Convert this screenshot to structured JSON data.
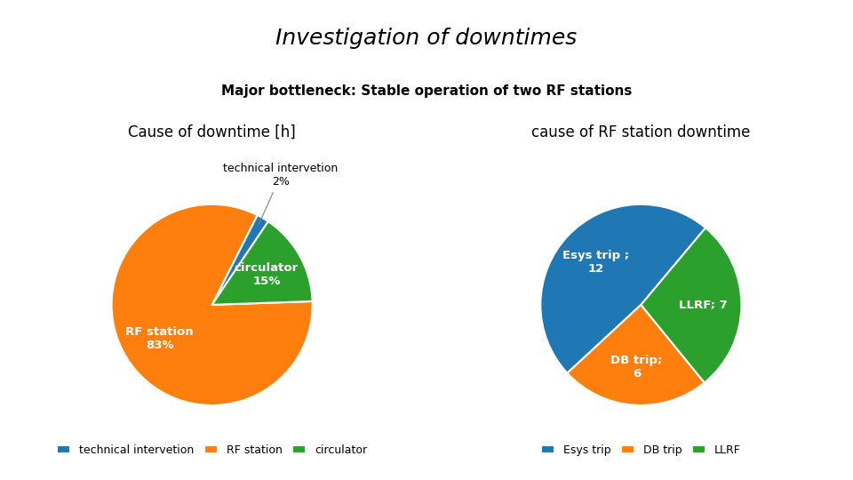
{
  "title": "Investigation of downtimes",
  "subtitle": "Major bottleneck: Stable operation of two RF stations",
  "chart_data": [
    {
      "type": "pie",
      "title": "Cause of downtime [h]",
      "categories": [
        "technical intervetion",
        "RF station",
        "circulator"
      ],
      "values": [
        2,
        83,
        15
      ],
      "value_labels": [
        "technical intervetion\n2%",
        "RF station\n83%",
        "circulator\n15%"
      ],
      "data_labels": true,
      "legend": "lower center"
    },
    {
      "type": "pie",
      "title": "cause of RF station downtime",
      "categories": [
        "Esys trip",
        "DB trip",
        "LLRF"
      ],
      "values": [
        12,
        6,
        7
      ],
      "value_labels": [
        "Esys trip ;\n12",
        "DB trip;\n6",
        "LLRF; 7"
      ],
      "data_labels": true,
      "legend": "lower center"
    }
  ]
}
